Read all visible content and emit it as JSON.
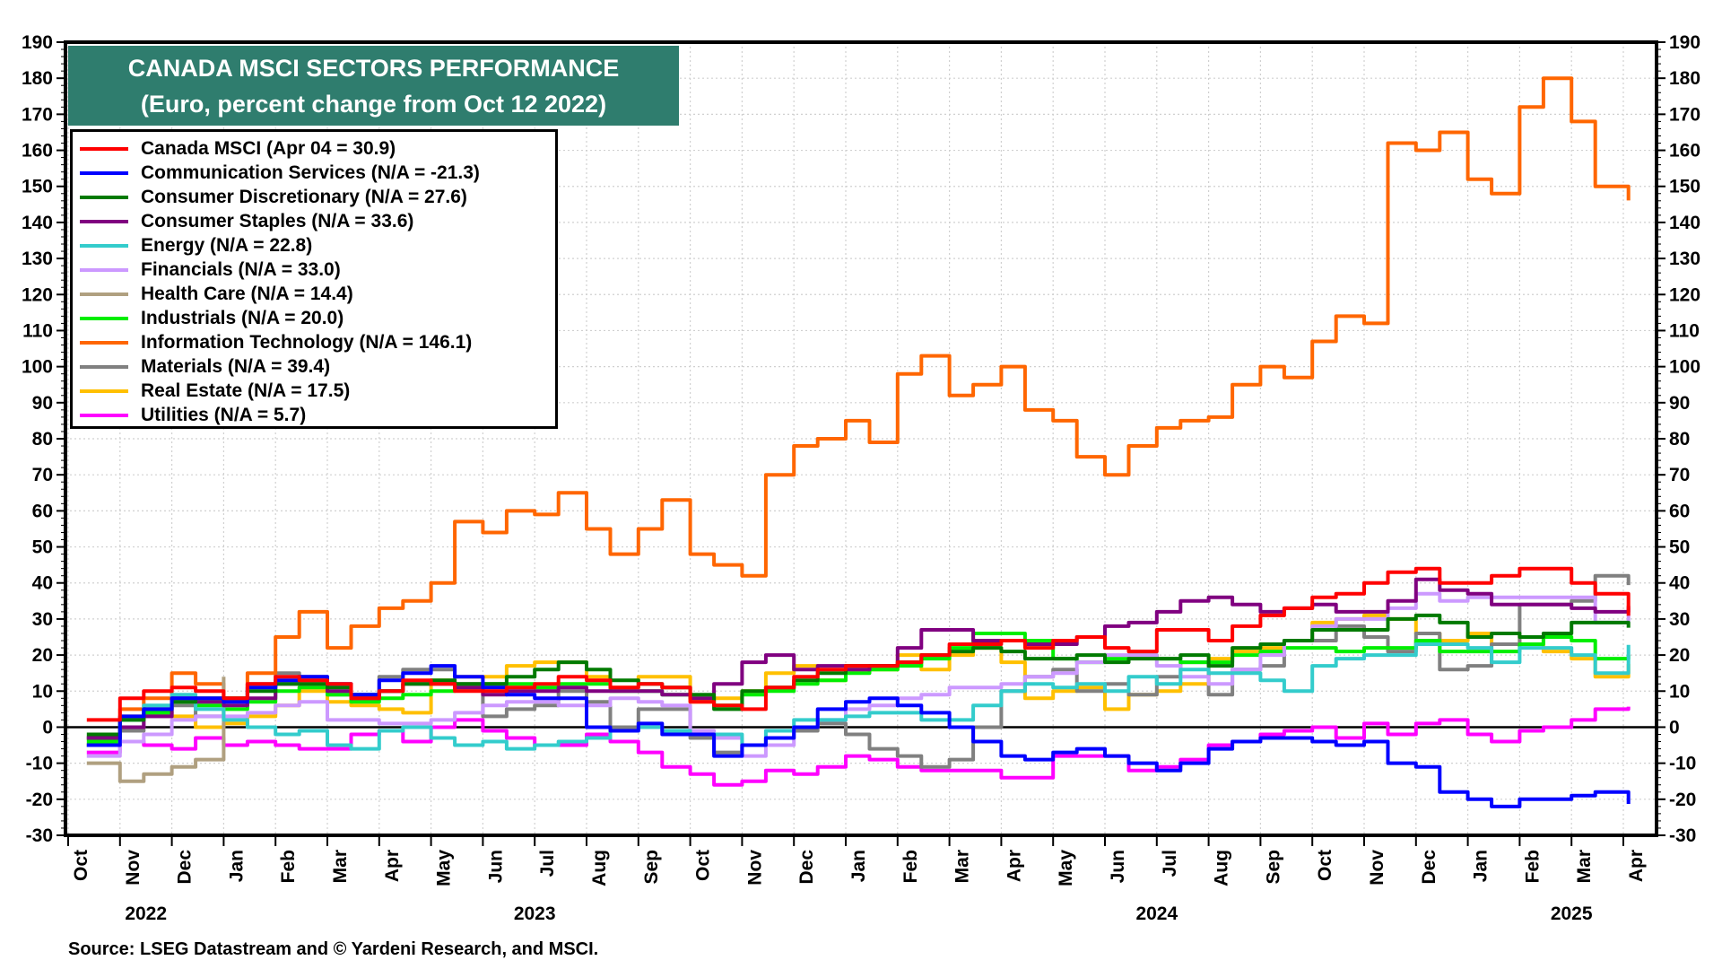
{
  "chart_data": {
    "type": "line",
    "title": "CANADA MSCI SECTORS PERFORMANCE",
    "subtitle": "(Euro, percent change from Oct 12 2022)",
    "ylim": [
      -30,
      190
    ],
    "yticks": [
      190,
      180,
      170,
      160,
      150,
      140,
      130,
      120,
      110,
      100,
      90,
      80,
      70,
      60,
      50,
      40,
      30,
      20,
      10,
      0,
      -10,
      -20,
      -30
    ],
    "grid": true,
    "legend_position": "top-left",
    "month_ticks": [
      "Oct",
      "Nov",
      "Dec",
      "Jan",
      "Feb",
      "Mar",
      "Apr",
      "May",
      "Jun",
      "Jul",
      "Aug",
      "Sep",
      "Oct",
      "Nov",
      "Dec",
      "Jan",
      "Feb",
      "Mar",
      "Apr",
      "May",
      "Jun",
      "Jul",
      "Aug",
      "Sep",
      "Oct",
      "Nov",
      "Dec",
      "Jan",
      "Feb",
      "Mar",
      "Apr"
    ],
    "year_labels": [
      {
        "year": "2022",
        "month_index": 1.5
      },
      {
        "year": "2023",
        "month_index": 9
      },
      {
        "year": "2024",
        "month_index": 21
      },
      {
        "year": "2025",
        "month_index": 29
      }
    ],
    "x": [
      "2022-10-15",
      "2022-11-01",
      "2022-11-15",
      "2022-12-01",
      "2022-12-15",
      "2023-01-01",
      "2023-01-15",
      "2023-02-01",
      "2023-02-15",
      "2023-03-01",
      "2023-03-15",
      "2023-04-01",
      "2023-04-15",
      "2023-05-01",
      "2023-05-15",
      "2023-06-01",
      "2023-06-15",
      "2023-07-01",
      "2023-07-15",
      "2023-08-01",
      "2023-08-15",
      "2023-09-01",
      "2023-09-15",
      "2023-10-01",
      "2023-10-15",
      "2023-11-01",
      "2023-11-15",
      "2023-12-01",
      "2023-12-15",
      "2024-01-01",
      "2024-01-15",
      "2024-02-01",
      "2024-02-15",
      "2024-03-01",
      "2024-03-15",
      "2024-04-01",
      "2024-04-15",
      "2024-05-01",
      "2024-05-15",
      "2024-06-01",
      "2024-06-15",
      "2024-07-01",
      "2024-07-15",
      "2024-08-01",
      "2024-08-15",
      "2024-09-01",
      "2024-09-15",
      "2024-10-01",
      "2024-10-15",
      "2024-11-01",
      "2024-11-15",
      "2024-12-01",
      "2024-12-15",
      "2025-01-01",
      "2025-01-15",
      "2025-02-01",
      "2025-02-15",
      "2025-03-01",
      "2025-03-15",
      "2025-04-01"
    ],
    "series": [
      {
        "name": "Canada MSCI (Apr 04 = 30.9)",
        "color": "#ff0000",
        "values": [
          2,
          8,
          10,
          11,
          10,
          8,
          12,
          14,
          13,
          12,
          8,
          10,
          13,
          12,
          10,
          10,
          11,
          12,
          14,
          13,
          11,
          12,
          11,
          7,
          6,
          5,
          11,
          14,
          16,
          17,
          17,
          18,
          20,
          23,
          23,
          24,
          22,
          24,
          25,
          22,
          21,
          27,
          27,
          24,
          28,
          31,
          33,
          36,
          37,
          40,
          43,
          44,
          40,
          40,
          42,
          44,
          44,
          40,
          37,
          30.9
        ]
      },
      {
        "name": "Communication Services (N/A = -21.3)",
        "color": "#0000ff",
        "values": [
          -5,
          3,
          5,
          8,
          8,
          7,
          11,
          13,
          14,
          12,
          9,
          13,
          15,
          17,
          14,
          11,
          9,
          8,
          8,
          0,
          -1,
          1,
          -2,
          -2,
          -8,
          -5,
          -3,
          0,
          5,
          7,
          8,
          6,
          4,
          0,
          -4,
          -8,
          -9,
          -7,
          -6,
          -8,
          -10,
          -12,
          -10,
          -6,
          -4,
          -3,
          -3,
          -4,
          -5,
          -4,
          -10,
          -11,
          -18,
          -20,
          -22,
          -20,
          -20,
          -19,
          -18,
          -21.3
        ]
      },
      {
        "name": "Consumer Discretionary (N/A = 27.6)",
        "color": "#007a00",
        "values": [
          -2,
          2,
          5,
          7,
          8,
          8,
          10,
          12,
          12,
          11,
          9,
          10,
          12,
          13,
          12,
          12,
          14,
          16,
          18,
          16,
          13,
          12,
          11,
          9,
          5,
          10,
          11,
          13,
          15,
          17,
          17,
          18,
          20,
          21,
          22,
          21,
          19,
          19,
          20,
          18,
          19,
          19,
          20,
          17,
          22,
          23,
          24,
          27,
          27,
          27,
          30,
          31,
          29,
          25,
          26,
          25,
          26,
          29,
          29,
          27.6
        ]
      },
      {
        "name": "Consumer Staples (N/A = 33.6)",
        "color": "#800080",
        "values": [
          -3,
          0,
          3,
          8,
          7,
          6,
          8,
          12,
          12,
          10,
          8,
          10,
          12,
          12,
          11,
          9,
          10,
          10,
          11,
          10,
          10,
          10,
          9,
          8,
          12,
          18,
          20,
          16,
          17,
          16,
          17,
          22,
          27,
          27,
          24,
          24,
          23,
          23,
          25,
          28,
          29,
          32,
          35,
          36,
          34,
          32,
          33,
          34,
          32,
          32,
          35,
          41,
          38,
          37,
          34,
          34,
          34,
          33,
          32,
          33.6
        ]
      },
      {
        "name": "Energy (N/A = 22.8)",
        "color": "#33cccc",
        "values": [
          -3,
          2,
          6,
          9,
          5,
          2,
          0,
          -2,
          -1,
          -5,
          -6,
          -1,
          0,
          -3,
          -5,
          -4,
          -6,
          -5,
          -4,
          -3,
          -1,
          0,
          -1,
          -2,
          -2,
          -5,
          -1,
          2,
          2,
          3,
          4,
          4,
          2,
          2,
          6,
          10,
          12,
          11,
          12,
          10,
          14,
          12,
          16,
          15,
          15,
          13,
          10,
          17,
          19,
          20,
          20,
          23,
          23,
          22,
          18,
          22,
          22,
          20,
          15,
          22.8
        ]
      },
      {
        "name": "Financials (N/A = 33.0)",
        "color": "#cc99ff",
        "values": [
          -8,
          -4,
          -2,
          2,
          3,
          3,
          4,
          6,
          7,
          2,
          2,
          1,
          1,
          2,
          4,
          6,
          7,
          7,
          6,
          6,
          8,
          7,
          6,
          -1,
          -3,
          -8,
          -5,
          0,
          2,
          5,
          6,
          8,
          9,
          11,
          11,
          12,
          14,
          15,
          18,
          20,
          20,
          17,
          14,
          12,
          16,
          20,
          24,
          28,
          30,
          30,
          33,
          37,
          35,
          36,
          36,
          36,
          36,
          36,
          29,
          33.0
        ]
      },
      {
        "name": "Health Care (N/A = 14.4)",
        "color": "#b0a080",
        "values": [
          -10,
          -15,
          -13,
          -11,
          -9,
          14,
          null,
          null,
          null,
          null,
          null,
          null,
          null,
          null,
          null,
          null,
          null,
          null,
          null,
          null,
          null,
          null,
          null,
          null,
          null,
          null,
          null,
          null,
          null,
          null,
          null,
          null,
          null,
          null,
          null,
          null,
          null,
          null,
          null,
          null,
          null,
          null,
          null,
          null,
          null,
          null,
          null,
          null,
          null,
          null,
          null,
          null,
          null,
          null,
          null,
          null,
          null,
          null,
          null,
          null
        ]
      },
      {
        "name": "Industrials (N/A = 20.0)",
        "color": "#00ee00",
        "values": [
          -4,
          2,
          4,
          7,
          6,
          5,
          7,
          10,
          11,
          9,
          7,
          8,
          9,
          10,
          11,
          12,
          12,
          11,
          12,
          12,
          10,
          10,
          9,
          8,
          6,
          9,
          10,
          12,
          13,
          15,
          16,
          17,
          19,
          22,
          26,
          26,
          24,
          19,
          18,
          19,
          20,
          19,
          18,
          18,
          20,
          21,
          22,
          22,
          21,
          22,
          22,
          24,
          21,
          21,
          21,
          23,
          25,
          24,
          19,
          20.0
        ]
      },
      {
        "name": "Information Technology (N/A = 146.1)",
        "color": "#ff6600",
        "values": [
          -3,
          5,
          8,
          15,
          12,
          8,
          15,
          25,
          32,
          22,
          28,
          33,
          35,
          40,
          57,
          54,
          60,
          59,
          65,
          55,
          48,
          55,
          63,
          48,
          45,
          42,
          70,
          78,
          80,
          85,
          79,
          98,
          103,
          92,
          95,
          100,
          88,
          85,
          75,
          70,
          78,
          83,
          85,
          86,
          95,
          100,
          97,
          107,
          114,
          112,
          162,
          160,
          165,
          152,
          148,
          172,
          180,
          168,
          150,
          146.1
        ]
      },
      {
        "name": "Materials (N/A = 39.4)",
        "color": "#808080",
        "values": [
          -5,
          -1,
          3,
          6,
          3,
          8,
          12,
          15,
          14,
          9,
          8,
          14,
          16,
          16,
          12,
          3,
          5,
          6,
          10,
          7,
          0,
          5,
          5,
          -3,
          -7,
          -5,
          -3,
          -1,
          1,
          -2,
          -6,
          -8,
          -11,
          -9,
          0,
          10,
          14,
          16,
          10,
          12,
          9,
          14,
          18,
          9,
          16,
          17,
          24,
          24,
          28,
          25,
          21,
          26,
          16,
          17,
          23,
          34,
          34,
          35,
          42,
          39.4
        ]
      },
      {
        "name": "Real Estate (N/A = 17.5)",
        "color": "#ffc000",
        "values": [
          -5,
          3,
          4,
          3,
          0,
          1,
          3,
          6,
          10,
          7,
          6,
          5,
          4,
          13,
          14,
          14,
          17,
          18,
          18,
          14,
          11,
          14,
          14,
          7,
          8,
          10,
          15,
          17,
          13,
          16,
          16,
          20,
          16,
          20,
          22,
          18,
          8,
          10,
          11,
          5,
          9,
          10,
          12,
          19,
          21,
          22,
          24,
          29,
          30,
          31,
          30,
          26,
          24,
          26,
          23,
          25,
          21,
          19,
          14,
          17.5
        ]
      },
      {
        "name": "Utilities (N/A = 5.7)",
        "color": "#ff00ff",
        "values": [
          -7,
          -4,
          -5,
          -6,
          -3,
          -5,
          -4,
          -5,
          -6,
          -6,
          -2,
          -1,
          -4,
          0,
          2,
          -1,
          -3,
          -5,
          -5,
          -2,
          -4,
          -7,
          -11,
          -13,
          -16,
          -15,
          -12,
          -13,
          -11,
          -8,
          -9,
          -11,
          -12,
          -12,
          -12,
          -14,
          -14,
          -8,
          -8,
          -8,
          -12,
          -11,
          -9,
          -5,
          -4,
          -2,
          -1,
          0,
          -3,
          1,
          -2,
          1,
          2,
          -2,
          -4,
          -1,
          0,
          2,
          5,
          5.7
        ]
      }
    ]
  },
  "source": "Source: LSEG Datastream and © Yardeni Research, and MSCI."
}
